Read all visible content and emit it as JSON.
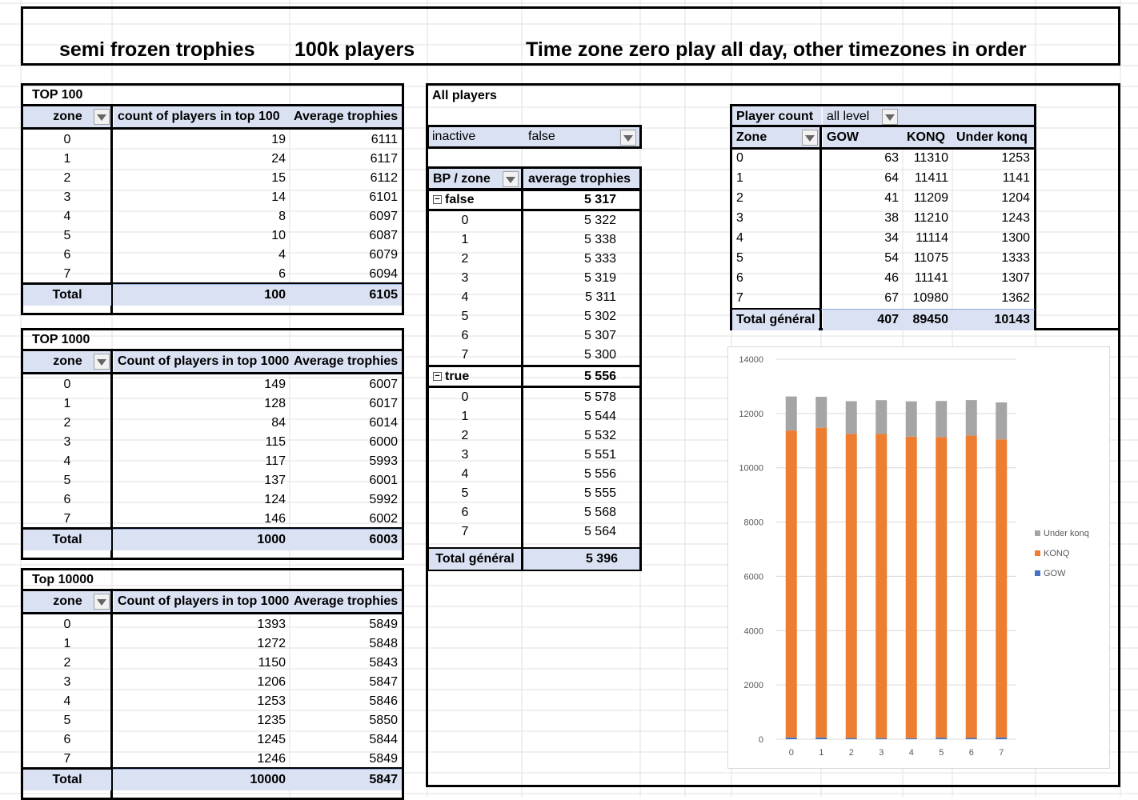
{
  "header": {
    "title1": "semi frozen trophies",
    "title2": "100k players",
    "title3": "Time zone zero play all day, other timezones in order"
  },
  "top100": {
    "title": "TOP 100",
    "headers": [
      "zone",
      "count of players in top 100",
      "Average trophies"
    ],
    "rows": [
      [
        "0",
        "19",
        "6111"
      ],
      [
        "1",
        "24",
        "6117"
      ],
      [
        "2",
        "15",
        "6112"
      ],
      [
        "3",
        "14",
        "6101"
      ],
      [
        "4",
        "8",
        "6097"
      ],
      [
        "5",
        "10",
        "6087"
      ],
      [
        "6",
        "4",
        "6079"
      ],
      [
        "7",
        "6",
        "6094"
      ]
    ],
    "total": [
      "Total",
      "100",
      "6105"
    ]
  },
  "top1000": {
    "title": "TOP 1000",
    "headers": [
      "zone",
      "Count of players in top 1000",
      "Average trophies"
    ],
    "rows": [
      [
        "0",
        "149",
        "6007"
      ],
      [
        "1",
        "128",
        "6017"
      ],
      [
        "2",
        "84",
        "6014"
      ],
      [
        "3",
        "115",
        "6000"
      ],
      [
        "4",
        "117",
        "5993"
      ],
      [
        "5",
        "137",
        "6001"
      ],
      [
        "6",
        "124",
        "5992"
      ],
      [
        "7",
        "146",
        "6002"
      ]
    ],
    "total": [
      "Total",
      "1000",
      "6003"
    ]
  },
  "top10000": {
    "title": "Top 10000",
    "headers": [
      "zone",
      "Count of players in top 1000",
      "Average trophies"
    ],
    "rows": [
      [
        "0",
        "1393",
        "5849"
      ],
      [
        "1",
        "1272",
        "5848"
      ],
      [
        "2",
        "1150",
        "5843"
      ],
      [
        "3",
        "1206",
        "5847"
      ],
      [
        "4",
        "1253",
        "5846"
      ],
      [
        "5",
        "1235",
        "5850"
      ],
      [
        "6",
        "1245",
        "5844"
      ],
      [
        "7",
        "1246",
        "5849"
      ]
    ],
    "total": [
      "Total",
      "10000",
      "5847"
    ]
  },
  "allplayers": {
    "title": "All players",
    "filter_label": "inactive",
    "filter_value": "false",
    "headers": [
      "BP / zone",
      "average trophies"
    ],
    "groups": [
      {
        "label": "false",
        "value": "5 317",
        "rows": [
          [
            "0",
            "5 322"
          ],
          [
            "1",
            "5 338"
          ],
          [
            "2",
            "5 333"
          ],
          [
            "3",
            "5 319"
          ],
          [
            "4",
            "5 311"
          ],
          [
            "5",
            "5 302"
          ],
          [
            "6",
            "5 307"
          ],
          [
            "7",
            "5 300"
          ]
        ]
      },
      {
        "label": "true",
        "value": "5 556",
        "rows": [
          [
            "0",
            "5 578"
          ],
          [
            "1",
            "5 544"
          ],
          [
            "2",
            "5 532"
          ],
          [
            "3",
            "5 551"
          ],
          [
            "4",
            "5 556"
          ],
          [
            "5",
            "5 555"
          ],
          [
            "6",
            "5 568"
          ],
          [
            "7",
            "5 564"
          ]
        ]
      }
    ],
    "total": [
      "Total général",
      "5 396"
    ]
  },
  "playercount": {
    "header_label": "Player count",
    "header_filter": "all level",
    "headers": [
      "Zone",
      "GOW",
      "KONQ",
      "Under konq"
    ],
    "rows": [
      [
        "0",
        "63",
        "11310",
        "1253"
      ],
      [
        "1",
        "64",
        "11411",
        "1141"
      ],
      [
        "2",
        "41",
        "11209",
        "1204"
      ],
      [
        "3",
        "38",
        "11210",
        "1243"
      ],
      [
        "4",
        "34",
        "11114",
        "1300"
      ],
      [
        "5",
        "54",
        "11075",
        "1333"
      ],
      [
        "6",
        "46",
        "11141",
        "1307"
      ],
      [
        "7",
        "67",
        "10980",
        "1362"
      ]
    ],
    "total": [
      "Total général",
      "407",
      "89450",
      "10143"
    ]
  },
  "chart_data": {
    "type": "bar",
    "stacked": true,
    "categories": [
      "0",
      "1",
      "2",
      "3",
      "4",
      "5",
      "6",
      "7"
    ],
    "series": [
      {
        "name": "GOW",
        "values": [
          63,
          64,
          41,
          38,
          34,
          54,
          46,
          67
        ],
        "color": "#4472c4"
      },
      {
        "name": "KONQ",
        "values": [
          11310,
          11411,
          11209,
          11210,
          11114,
          11075,
          11141,
          10980
        ],
        "color": "#ed7d31"
      },
      {
        "name": "Under konq",
        "values": [
          1253,
          1141,
          1204,
          1243,
          1300,
          1333,
          1307,
          1362
        ],
        "color": "#a5a5a5"
      }
    ],
    "yticks": [
      "0",
      "2000",
      "4000",
      "6000",
      "8000",
      "10000",
      "12000",
      "14000"
    ],
    "ylim": [
      0,
      14000
    ],
    "legend": "right",
    "legend_order": [
      "Under konq",
      "KONQ",
      "GOW"
    ],
    "grid": true
  }
}
